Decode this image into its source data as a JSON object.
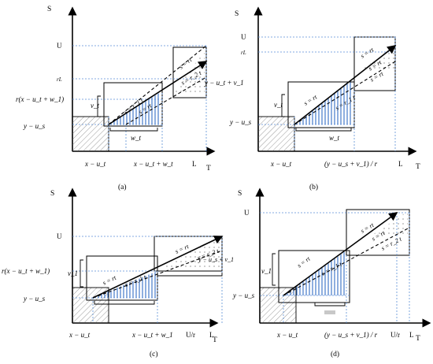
{
  "panels": {
    "a": {
      "label": "(a)",
      "y_axis": "S",
      "x_axis": "T",
      "y_ticks": [
        "U",
        "rL",
        "r(x − u_t + w_1)",
        "y − u_s"
      ],
      "x_ticks": [
        "x − u_t",
        "x − u_t + w_t",
        "L"
      ],
      "side_labels": [
        "v_t",
        "w_t",
        "y − u_t + v_1"
      ],
      "line_labels": [
        "s = r_1 t",
        "s = rt",
        "s = r_2 t",
        "s = rt"
      ]
    },
    "b": {
      "label": "(b)",
      "y_axis": "S",
      "x_axis": "T",
      "y_ticks": [
        "U",
        "rL",
        "y − u_s"
      ],
      "x_ticks": [
        "x − u_t",
        "(y − u_s + v_1) / r",
        "L"
      ],
      "side_labels": [
        "v_t",
        "w_t"
      ],
      "line_labels": [
        "s = rt",
        "s = r_1 t",
        "s = rt",
        "s = rt",
        "s = rt"
      ]
    },
    "c": {
      "label": "(c)",
      "y_axis": "S",
      "x_axis": "T",
      "y_ticks": [
        "U",
        "r(x − u_t + w_1)",
        "y − u_s"
      ],
      "x_ticks": [
        "x − u_t",
        "x − u_t + w_1",
        "U/r",
        "L"
      ],
      "side_labels": [
        "v_1",
        "y − u_s + v_1"
      ],
      "line_labels": [
        "s = rt",
        "s = r_1 t",
        "s = rt",
        "s = r_2 t"
      ]
    },
    "d": {
      "label": "(d)",
      "y_axis": "S",
      "x_axis": "T",
      "y_ticks": [
        "U",
        "y − u_s"
      ],
      "x_ticks": [
        "x − u_t",
        "(y − u_s + v_1) / r",
        "U/r",
        "L"
      ],
      "side_labels": [
        "v_1"
      ],
      "line_labels": [
        "s = rt",
        "s = r_1 t",
        "s = rt",
        "s = rt",
        "s = r_2 t"
      ]
    }
  },
  "colors": {
    "hatch_blue": "#1f5fbf",
    "grid_blue": "#5b8fd6"
  }
}
